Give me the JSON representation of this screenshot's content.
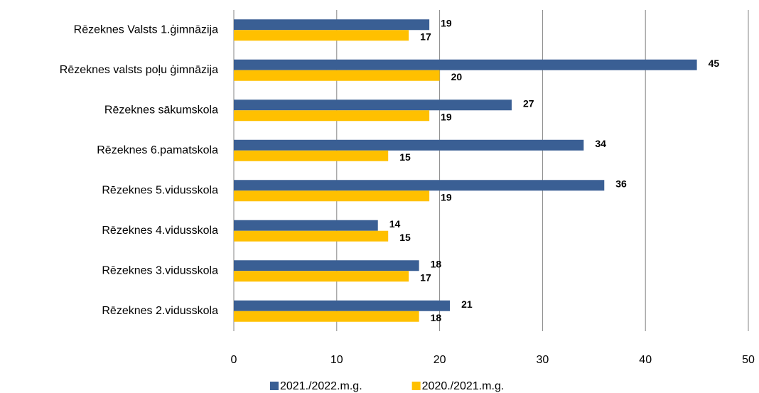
{
  "chart_data": {
    "type": "bar",
    "orientation": "horizontal",
    "categories": [
      "Rēzeknes Valsts 1.ģimnāzija",
      "Rēzeknes valsts poļu ģimnāzija",
      "Rēzeknes sākumskola",
      "Rēzeknes 6.pamatskola",
      "Rēzeknes 5.vidusskola",
      "Rēzeknes 4.vidusskola",
      "Rēzeknes 3.vidusskola",
      "Rēzeknes 2.vidusskola"
    ],
    "series": [
      {
        "name": "2021./2022.m.g.",
        "color": "#3a5f94",
        "values": [
          19,
          45,
          27,
          34,
          36,
          14,
          18,
          21
        ]
      },
      {
        "name": "2020./2021.m.g.",
        "color": "#ffc000",
        "values": [
          17,
          20,
          19,
          15,
          19,
          15,
          17,
          18
        ]
      }
    ],
    "xlim": [
      0,
      50
    ],
    "xticks": [
      0,
      10,
      20,
      30,
      40,
      50
    ],
    "grid": true,
    "legend": "bottom"
  }
}
